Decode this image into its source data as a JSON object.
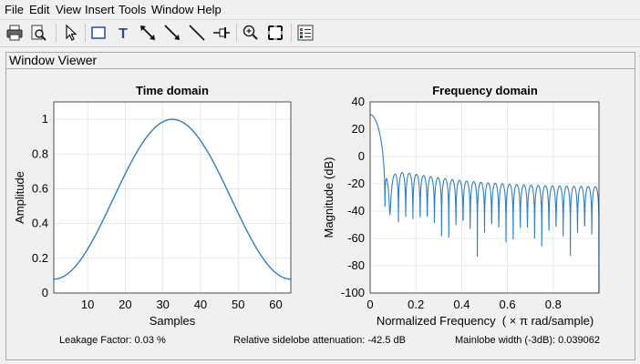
{
  "menu": {
    "items": [
      "File",
      "Edit",
      "View",
      "Insert",
      "Tools",
      "Window",
      "Help"
    ]
  },
  "toolbar": {
    "buttons": [
      {
        "name": "print-button",
        "icon": "printer-icon"
      },
      {
        "name": "print-preview-button",
        "icon": "print-preview-icon"
      },
      {
        "name": "select-pointer-button",
        "icon": "pointer-icon"
      },
      {
        "name": "insert-rectangle-button",
        "icon": "rectangle-icon"
      },
      {
        "name": "insert-text-button",
        "icon": "text-icon"
      },
      {
        "name": "insert-double-arrow-button",
        "icon": "double-arrow-icon"
      },
      {
        "name": "insert-arrow-button",
        "icon": "arrow-icon"
      },
      {
        "name": "insert-line-button",
        "icon": "line-icon"
      },
      {
        "name": "pin-button",
        "icon": "pin-icon"
      },
      {
        "name": "zoom-in-button",
        "icon": "zoom-in-icon"
      },
      {
        "name": "full-view-button",
        "icon": "full-view-icon"
      },
      {
        "name": "legend-button",
        "icon": "legend-icon"
      }
    ]
  },
  "panel": {
    "title": "Window Viewer"
  },
  "colors": {
    "line": "#2f7fc1",
    "axes_bg": "#ffffff",
    "grid": "#e2e2e2"
  },
  "chart_data": [
    {
      "type": "line",
      "title": "Time domain",
      "xlabel": "Samples",
      "ylabel": "Amplitude",
      "xlim": [
        1,
        64
      ],
      "ylim": [
        0,
        1.1
      ],
      "xticks": [
        10,
        20,
        30,
        40,
        50,
        60
      ],
      "yticks": [
        0,
        0.2,
        0.4,
        0.6,
        0.8,
        1
      ],
      "ytick_labels": [
        "0",
        "0.2",
        "0.4",
        "0.6",
        "0.8",
        "1"
      ],
      "grid": true,
      "series": [
        {
          "window": "hamming",
          "length": 64,
          "x": [
            1,
            4,
            8,
            12,
            16,
            20,
            24,
            28,
            32,
            33,
            37,
            41,
            45,
            49,
            53,
            57,
            61,
            64
          ],
          "y": [
            0.08,
            0.1,
            0.16,
            0.26,
            0.39,
            0.53,
            0.69,
            0.85,
            0.97,
            1.0,
            0.97,
            0.86,
            0.7,
            0.53,
            0.38,
            0.24,
            0.14,
            0.08
          ]
        }
      ]
    },
    {
      "type": "line",
      "title": "Frequency domain",
      "xlabel": "Normalized Frequency  ( × π rad/sample)",
      "ylabel": "Magnitude (dB)",
      "xlim": [
        0,
        1
      ],
      "ylim": [
        -100,
        40
      ],
      "xticks": [
        0,
        0.2,
        0.4,
        0.6,
        0.8
      ],
      "xtick_labels": [
        "0",
        "0.2",
        "0.4",
        "0.6",
        "0.8"
      ],
      "yticks": [
        -100,
        -80,
        -60,
        -40,
        -20,
        0,
        20,
        40
      ],
      "grid": true,
      "series": [
        {
          "mainlobe_peak_db": 30.1,
          "sidelobe_peak_db_at_start": -12,
          "sidelobe_peak_db_at_end": -22,
          "null_depth_db_at_start": -42,
          "null_depth_db_at_end": -86,
          "first_null_x": 0.062
        }
      ]
    }
  ],
  "footer": {
    "leakage": "Leakage Factor: 0.03 %",
    "sidelobe": "Relative sidelobe attenuation: -42.5 dB",
    "mainlobe": "Mainlobe width (-3dB): 0.039062"
  }
}
